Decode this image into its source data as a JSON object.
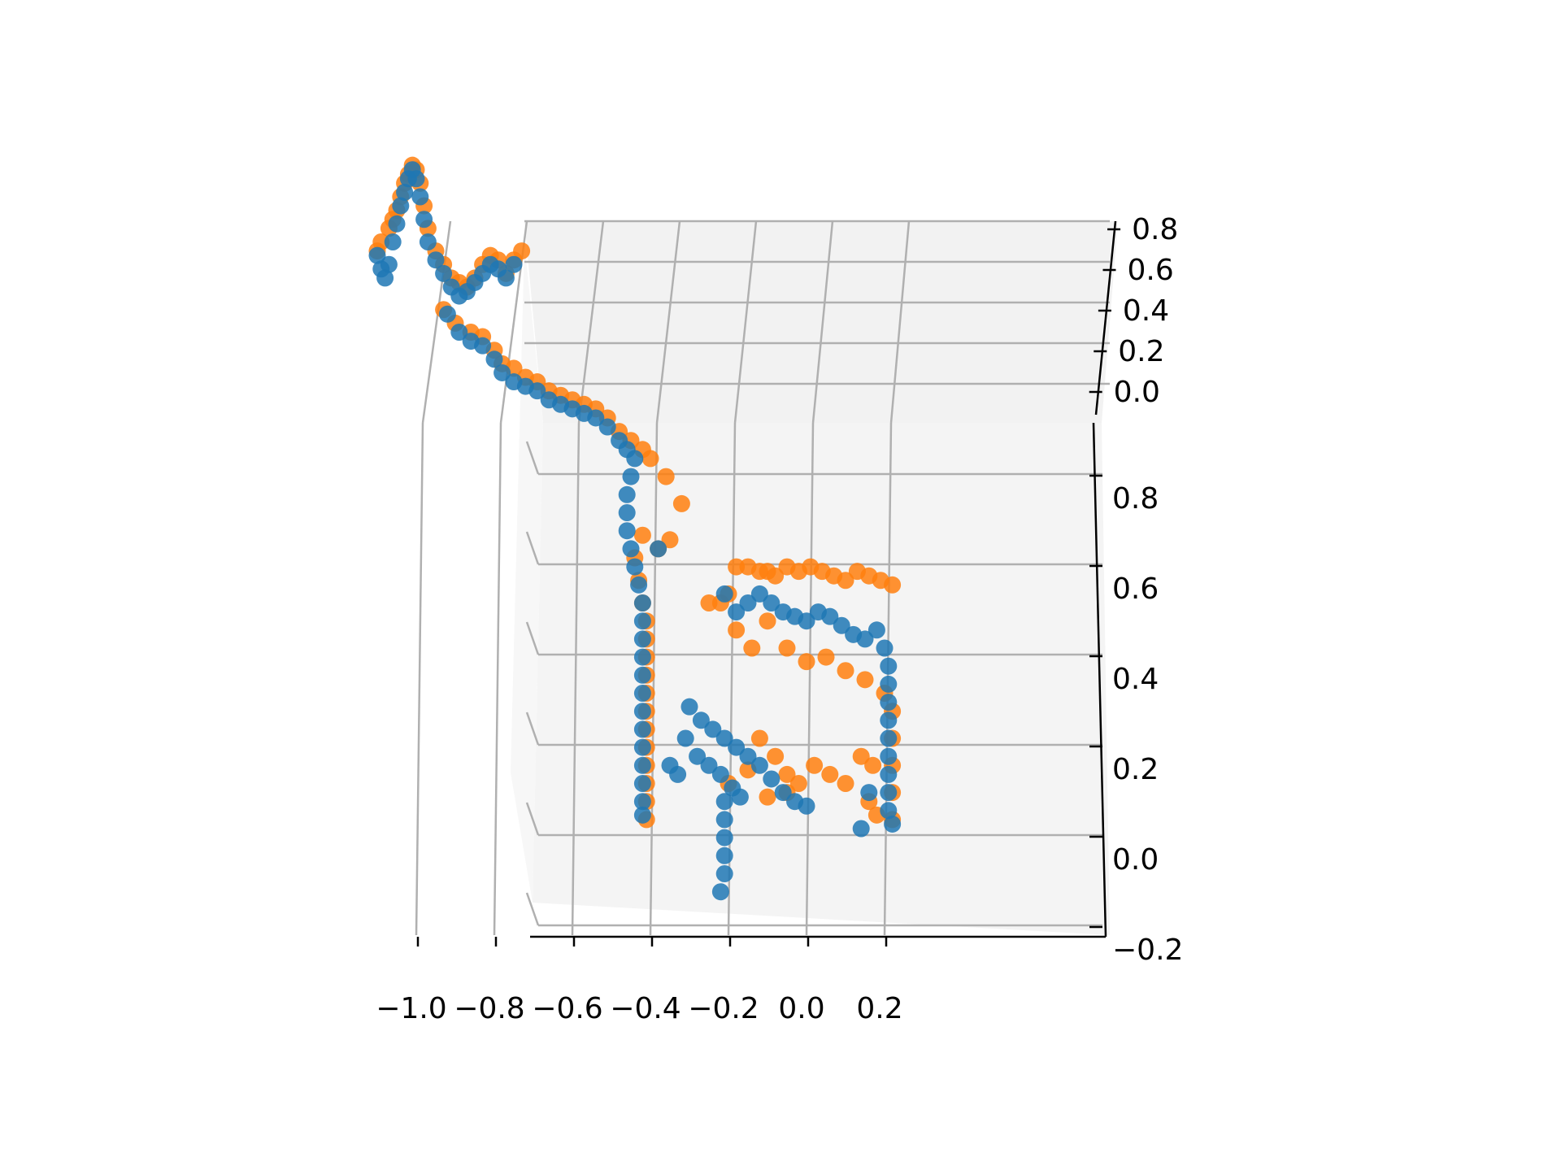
{
  "chart_data": {
    "type": "scatter",
    "projection": "3d",
    "title": "",
    "xlabel": "",
    "ylabel": "",
    "zlabel": "",
    "grid": true,
    "legend": "none",
    "colors": {
      "orange": "#ff7f0e",
      "blue": "#1f77b4",
      "pane": "#f2f2f2",
      "grid": "#b0b0b0",
      "axis": "#000000"
    },
    "x_axis": {
      "ticks": [
        -1.0,
        -0.8,
        -0.6,
        -0.4,
        -0.2,
        0.0,
        0.2
      ],
      "tick_labels": [
        "−1.0",
        "−0.8",
        "−0.6",
        "−0.4",
        "−0.2",
        "0.0",
        "0.2"
      ],
      "range": [
        -1.2,
        0.3
      ]
    },
    "back_axis": {
      "ticks": [
        0.0,
        0.2,
        0.4,
        0.6,
        0.8
      ],
      "tick_labels": [
        "0.0",
        "0.2",
        "0.4",
        "0.6",
        "0.8"
      ]
    },
    "z_axis": {
      "ticks": [
        -0.2,
        0.0,
        0.2,
        0.4,
        0.6,
        0.8
      ],
      "tick_labels": [
        "−0.2",
        "0.0",
        "0.2",
        "0.4",
        "0.6",
        "0.8"
      ],
      "range": [
        -0.25,
        0.9
      ]
    },
    "series": [
      {
        "color": "orange",
        "points": [
          [
            -1.1,
            1.28
          ],
          [
            -1.09,
            1.3
          ],
          [
            -1.07,
            1.33
          ],
          [
            -1.06,
            1.35
          ],
          [
            -1.05,
            1.37
          ],
          [
            -1.04,
            1.4
          ],
          [
            -1.03,
            1.43
          ],
          [
            -1.02,
            1.45
          ],
          [
            -1.01,
            1.47
          ],
          [
            -1.0,
            1.46
          ],
          [
            -0.99,
            1.43
          ],
          [
            -0.98,
            1.38
          ],
          [
            -0.97,
            1.33
          ],
          [
            -0.95,
            1.28
          ],
          [
            -0.93,
            1.25
          ],
          [
            -0.91,
            1.22
          ],
          [
            -0.89,
            1.21
          ],
          [
            -0.87,
            1.2
          ],
          [
            -0.85,
            1.22
          ],
          [
            -0.83,
            1.25
          ],
          [
            -0.81,
            1.27
          ],
          [
            -0.79,
            1.26
          ],
          [
            -0.77,
            1.23
          ],
          [
            -0.75,
            1.26
          ],
          [
            -0.73,
            1.28
          ],
          [
            -0.93,
            1.15
          ],
          [
            -0.9,
            1.12
          ],
          [
            -0.86,
            1.1
          ],
          [
            -0.83,
            1.09
          ],
          [
            -0.8,
            1.06
          ],
          [
            -0.78,
            1.03
          ],
          [
            -0.75,
            1.02
          ],
          [
            -0.72,
            1.0
          ],
          [
            -0.69,
            0.99
          ],
          [
            -0.66,
            0.97
          ],
          [
            -0.63,
            0.96
          ],
          [
            -0.6,
            0.95
          ],
          [
            -0.57,
            0.94
          ],
          [
            -0.54,
            0.93
          ],
          [
            -0.51,
            0.91
          ],
          [
            -0.48,
            0.88
          ],
          [
            -0.45,
            0.86
          ],
          [
            -0.42,
            0.84
          ],
          [
            -0.4,
            0.82
          ],
          [
            -0.36,
            0.78
          ],
          [
            -0.32,
            0.72
          ],
          [
            -0.35,
            0.64
          ],
          [
            -0.38,
            0.62
          ],
          [
            -0.42,
            0.65
          ],
          [
            -0.44,
            0.6
          ],
          [
            -0.43,
            0.55
          ],
          [
            -0.42,
            0.5
          ],
          [
            -0.41,
            0.46
          ],
          [
            -0.41,
            0.42
          ],
          [
            -0.41,
            0.38
          ],
          [
            -0.41,
            0.34
          ],
          [
            -0.41,
            0.3
          ],
          [
            -0.41,
            0.26
          ],
          [
            -0.41,
            0.22
          ],
          [
            -0.41,
            0.18
          ],
          [
            -0.41,
            0.14
          ],
          [
            -0.41,
            0.1
          ],
          [
            -0.41,
            0.06
          ],
          [
            -0.41,
            0.02
          ],
          [
            -0.25,
            0.5
          ],
          [
            -0.22,
            0.5
          ],
          [
            -0.2,
            0.52
          ],
          [
            -0.18,
            0.58
          ],
          [
            -0.15,
            0.58
          ],
          [
            -0.12,
            0.57
          ],
          [
            -0.1,
            0.57
          ],
          [
            -0.08,
            0.56
          ],
          [
            -0.05,
            0.58
          ],
          [
            -0.02,
            0.57
          ],
          [
            0.01,
            0.58
          ],
          [
            0.04,
            0.57
          ],
          [
            0.07,
            0.56
          ],
          [
            0.1,
            0.55
          ],
          [
            0.13,
            0.57
          ],
          [
            0.16,
            0.56
          ],
          [
            0.19,
            0.55
          ],
          [
            0.22,
            0.54
          ],
          [
            -0.18,
            0.44
          ],
          [
            -0.14,
            0.4
          ],
          [
            -0.1,
            0.46
          ],
          [
            -0.05,
            0.4
          ],
          [
            0.0,
            0.37
          ],
          [
            0.05,
            0.38
          ],
          [
            0.1,
            0.35
          ],
          [
            0.15,
            0.33
          ],
          [
            0.2,
            0.3
          ],
          [
            0.22,
            0.26
          ],
          [
            0.22,
            0.2
          ],
          [
            0.22,
            0.14
          ],
          [
            0.22,
            0.08
          ],
          [
            0.22,
            0.02
          ],
          [
            0.18,
            0.03
          ],
          [
            0.16,
            0.06
          ],
          [
            -0.12,
            0.2
          ],
          [
            -0.08,
            0.16
          ],
          [
            -0.05,
            0.12
          ],
          [
            -0.02,
            0.1
          ],
          [
            0.02,
            0.14
          ],
          [
            0.06,
            0.12
          ],
          [
            0.1,
            0.1
          ],
          [
            0.14,
            0.16
          ],
          [
            0.17,
            0.14
          ],
          [
            -0.2,
            0.1
          ],
          [
            -0.15,
            0.13
          ],
          [
            -0.1,
            0.07
          ],
          [
            -0.05,
            0.08
          ]
        ]
      },
      {
        "color": "blue",
        "points": [
          [
            -1.1,
            1.27
          ],
          [
            -1.09,
            1.24
          ],
          [
            -1.08,
            1.22
          ],
          [
            -1.07,
            1.25
          ],
          [
            -1.06,
            1.3
          ],
          [
            -1.05,
            1.34
          ],
          [
            -1.04,
            1.38
          ],
          [
            -1.03,
            1.41
          ],
          [
            -1.02,
            1.44
          ],
          [
            -1.01,
            1.46
          ],
          [
            -1.0,
            1.44
          ],
          [
            -0.99,
            1.4
          ],
          [
            -0.98,
            1.35
          ],
          [
            -0.97,
            1.3
          ],
          [
            -0.95,
            1.26
          ],
          [
            -0.93,
            1.23
          ],
          [
            -0.91,
            1.2
          ],
          [
            -0.89,
            1.18
          ],
          [
            -0.87,
            1.19
          ],
          [
            -0.85,
            1.21
          ],
          [
            -0.83,
            1.23
          ],
          [
            -0.81,
            1.25
          ],
          [
            -0.79,
            1.24
          ],
          [
            -0.77,
            1.22
          ],
          [
            -0.75,
            1.25
          ],
          [
            -0.92,
            1.14
          ],
          [
            -0.89,
            1.1
          ],
          [
            -0.86,
            1.08
          ],
          [
            -0.83,
            1.07
          ],
          [
            -0.8,
            1.04
          ],
          [
            -0.78,
            1.01
          ],
          [
            -0.75,
            0.99
          ],
          [
            -0.72,
            0.98
          ],
          [
            -0.69,
            0.97
          ],
          [
            -0.66,
            0.95
          ],
          [
            -0.63,
            0.94
          ],
          [
            -0.6,
            0.93
          ],
          [
            -0.57,
            0.92
          ],
          [
            -0.54,
            0.91
          ],
          [
            -0.51,
            0.89
          ],
          [
            -0.48,
            0.86
          ],
          [
            -0.46,
            0.84
          ],
          [
            -0.44,
            0.82
          ],
          [
            -0.45,
            0.78
          ],
          [
            -0.46,
            0.74
          ],
          [
            -0.46,
            0.7
          ],
          [
            -0.46,
            0.66
          ],
          [
            -0.45,
            0.62
          ],
          [
            -0.44,
            0.58
          ],
          [
            -0.43,
            0.54
          ],
          [
            -0.42,
            0.5
          ],
          [
            -0.42,
            0.46
          ],
          [
            -0.42,
            0.42
          ],
          [
            -0.42,
            0.38
          ],
          [
            -0.42,
            0.34
          ],
          [
            -0.42,
            0.3
          ],
          [
            -0.42,
            0.26
          ],
          [
            -0.42,
            0.22
          ],
          [
            -0.42,
            0.18
          ],
          [
            -0.42,
            0.14
          ],
          [
            -0.42,
            0.1
          ],
          [
            -0.42,
            0.06
          ],
          [
            -0.42,
            0.03
          ],
          [
            -0.38,
            0.62
          ],
          [
            -0.21,
            0.52
          ],
          [
            -0.18,
            0.48
          ],
          [
            -0.15,
            0.5
          ],
          [
            -0.12,
            0.52
          ],
          [
            -0.09,
            0.5
          ],
          [
            -0.06,
            0.48
          ],
          [
            -0.03,
            0.47
          ],
          [
            0.0,
            0.46
          ],
          [
            0.03,
            0.48
          ],
          [
            0.06,
            0.47
          ],
          [
            0.09,
            0.45
          ],
          [
            0.12,
            0.43
          ],
          [
            0.15,
            0.42
          ],
          [
            0.18,
            0.44
          ],
          [
            0.2,
            0.4
          ],
          [
            0.21,
            0.36
          ],
          [
            0.21,
            0.32
          ],
          [
            0.21,
            0.28
          ],
          [
            0.21,
            0.24
          ],
          [
            0.21,
            0.2
          ],
          [
            0.21,
            0.16
          ],
          [
            0.21,
            0.12
          ],
          [
            0.21,
            0.08
          ],
          [
            0.21,
            0.04
          ],
          [
            0.22,
            0.01
          ],
          [
            0.14,
            0.0
          ],
          [
            0.16,
            0.08
          ],
          [
            -0.3,
            0.27
          ],
          [
            -0.27,
            0.24
          ],
          [
            -0.24,
            0.22
          ],
          [
            -0.21,
            0.2
          ],
          [
            -0.18,
            0.18
          ],
          [
            -0.15,
            0.16
          ],
          [
            -0.12,
            0.14
          ],
          [
            -0.09,
            0.11
          ],
          [
            -0.06,
            0.08
          ],
          [
            -0.03,
            0.06
          ],
          [
            0.0,
            0.05
          ],
          [
            -0.31,
            0.2
          ],
          [
            -0.28,
            0.16
          ],
          [
            -0.25,
            0.14
          ],
          [
            -0.22,
            0.12
          ],
          [
            -0.19,
            0.09
          ],
          [
            -0.17,
            0.07
          ],
          [
            -0.21,
            0.06
          ],
          [
            -0.21,
            0.02
          ],
          [
            -0.21,
            -0.02
          ],
          [
            -0.21,
            -0.06
          ],
          [
            -0.21,
            -0.1
          ],
          [
            -0.22,
            -0.14
          ],
          [
            -0.35,
            0.14
          ],
          [
            -0.33,
            0.12
          ]
        ]
      }
    ]
  }
}
